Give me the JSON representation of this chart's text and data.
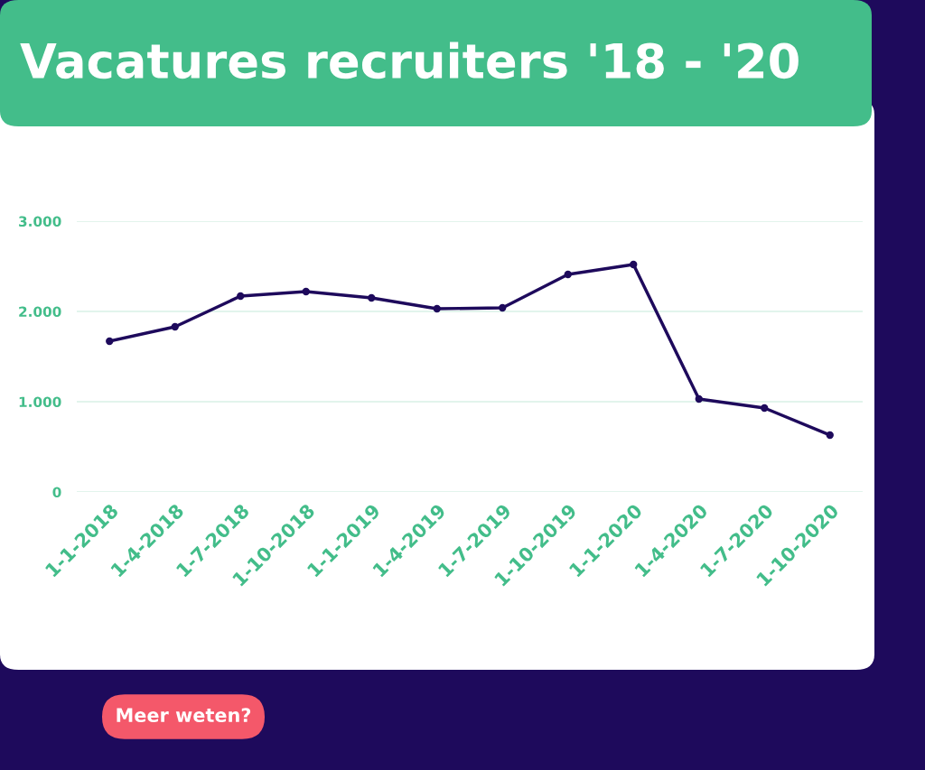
{
  "chart_data": {
    "type": "line",
    "title": "Vacatures recruiters '18 - '20",
    "categories": [
      "1-1-2018",
      "1-4-2018",
      "1-7-2018",
      "1-10-2018",
      "1-1-2019",
      "1-4-2019",
      "1-7-2019",
      "1-10-2019",
      "1-1-2020",
      "1-4-2020",
      "1-7-2020",
      "1-10-2020"
    ],
    "series": [
      {
        "color": "#1e0a5c",
        "values": [
          1670,
          1830,
          2170,
          2220,
          2150,
          2030,
          2040,
          2410,
          2520,
          1030,
          930,
          630
        ]
      }
    ],
    "ylim": [
      0,
      3000
    ],
    "yticks": [
      {
        "value": 0,
        "label": "0"
      },
      {
        "value": 1000,
        "label": "1.000"
      },
      {
        "value": 2000,
        "label": "2.000"
      },
      {
        "value": 3000,
        "label": "3.000"
      }
    ],
    "grid": "y",
    "marker": "circle",
    "line_style": "solid",
    "legend": false,
    "annotations": [
      "Meer weten?"
    ]
  }
}
